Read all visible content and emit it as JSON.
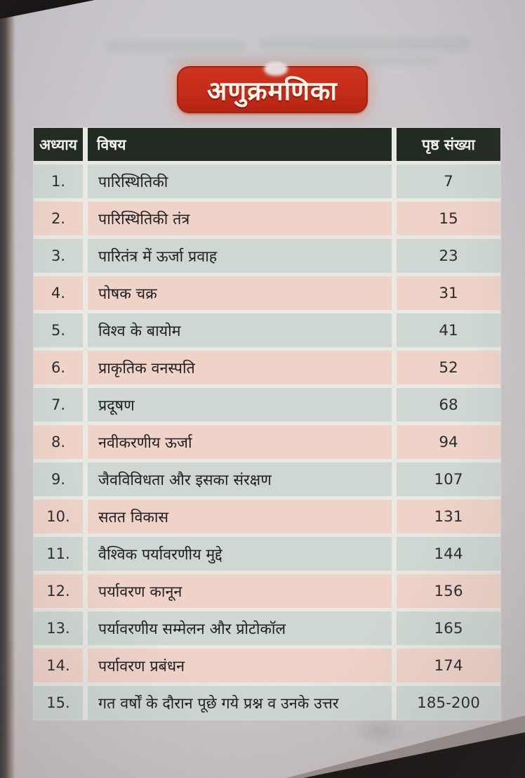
{
  "page": {
    "title": "अणुक्रमणिका"
  },
  "table": {
    "headers": [
      "अध्याय",
      "विषय",
      "पृष्ठ संख्या"
    ],
    "rows": [
      {
        "chapter": "1.",
        "topic": "पारिस्थितिकी",
        "pages": "7"
      },
      {
        "chapter": "2.",
        "topic": "पारिस्थितिकी तंत्र",
        "pages": "15"
      },
      {
        "chapter": "3.",
        "topic": "पारितंत्र में ऊर्जा प्रवाह",
        "pages": "23"
      },
      {
        "chapter": "4.",
        "topic": "पोषक चक्र",
        "pages": "31"
      },
      {
        "chapter": "5.",
        "topic": "विश्व के बायोम",
        "pages": "41"
      },
      {
        "chapter": "6.",
        "topic": "प्राकृतिक वनस्पति",
        "pages": "52"
      },
      {
        "chapter": "7.",
        "topic": "प्रदूषण",
        "pages": "68"
      },
      {
        "chapter": "8.",
        "topic": "नवीकरणीय ऊर्जा",
        "pages": "94"
      },
      {
        "chapter": "9.",
        "topic": "जैवविविधता और इसका संरक्षण",
        "pages": "107"
      },
      {
        "chapter": "10.",
        "topic": "सतत विकास",
        "pages": "131"
      },
      {
        "chapter": "11.",
        "topic": "वैश्विक पर्यावरणीय मुद्दे",
        "pages": "144"
      },
      {
        "chapter": "12.",
        "topic": "पर्यावरण कानून",
        "pages": "156"
      },
      {
        "chapter": "13.",
        "topic": "पर्यावरणीय सम्मेलन और प्रोटोकॉल",
        "pages": "165"
      },
      {
        "chapter": "14.",
        "topic": "पर्यावरण प्रबंधन",
        "pages": "174"
      },
      {
        "chapter": "15.",
        "topic": "गत वर्षों के दौरान पूछे गये प्रश्न व उनके उत्तर",
        "pages": "185-200"
      }
    ]
  },
  "colors": {
    "badge_red": "#c42c19",
    "header_green": "#222b22",
    "row_green": "#ced7d1",
    "row_pink": "#efd3c9",
    "paper": "#c9c5c9"
  }
}
